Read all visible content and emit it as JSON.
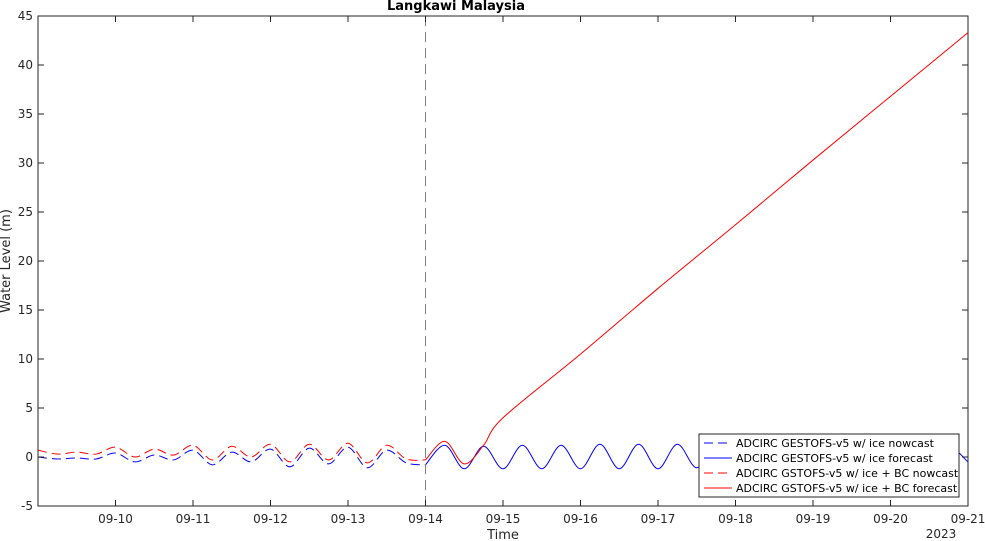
{
  "chart_data": {
    "type": "line",
    "title": "Langkawi Malaysia",
    "xlabel": "Time",
    "ylabel": "Water Level (m)",
    "year_label": "2023",
    "x_range": [
      "2023-09-09",
      "2023-09-21"
    ],
    "ylim": [
      -5,
      45
    ],
    "yticks": [
      -5,
      0,
      5,
      10,
      15,
      20,
      25,
      30,
      35,
      40,
      45
    ],
    "xticks": [
      {
        "date": "2023-09-10",
        "label": "09-10"
      },
      {
        "date": "2023-09-11",
        "label": "09-11"
      },
      {
        "date": "2023-09-12",
        "label": "09-12"
      },
      {
        "date": "2023-09-13",
        "label": "09-13"
      },
      {
        "date": "2023-09-14",
        "label": "09-14"
      },
      {
        "date": "2023-09-15",
        "label": "09-15"
      },
      {
        "date": "2023-09-16",
        "label": "09-16"
      },
      {
        "date": "2023-09-17",
        "label": "09-17"
      },
      {
        "date": "2023-09-18",
        "label": "09-18"
      },
      {
        "date": "2023-09-19",
        "label": "09-19"
      },
      {
        "date": "2023-09-20",
        "label": "09-20"
      },
      {
        "date": "2023-09-21",
        "label": "09-21"
      }
    ],
    "nowcast_forecast_split": "2023-09-14",
    "grid": false,
    "legend_position": "bottom-right",
    "series": [
      {
        "name": "ADCIRC GESTOFS-v5 w/ ice nowcast",
        "color": "#0000ff",
        "style": "dashed",
        "x": [
          "09-09 00:00",
          "09-09 06:00",
          "09-09 12:00",
          "09-09 18:00",
          "09-10 00:00",
          "09-10 06:00",
          "09-10 12:00",
          "09-10 18:00",
          "09-11 00:00",
          "09-11 06:00",
          "09-11 12:00",
          "09-11 18:00",
          "09-12 00:00",
          "09-12 06:00",
          "09-12 12:00",
          "09-12 18:00",
          "09-13 00:00",
          "09-13 06:00",
          "09-13 12:00",
          "09-13 18:00",
          "09-14 00:00"
        ],
        "y": [
          0.0,
          -0.2,
          -0.1,
          -0.2,
          0.4,
          -0.5,
          0.2,
          -0.3,
          0.7,
          -0.8,
          0.5,
          -0.5,
          0.8,
          -1.0,
          0.9,
          -0.7,
          1.0,
          -1.1,
          0.7,
          -0.6,
          -0.8
        ]
      },
      {
        "name": "ADCIRC GESTOFS-v5 w/ ice forecast",
        "color": "#0000ff",
        "style": "solid",
        "x": [
          "09-14 00:00",
          "09-14 06:00",
          "09-14 12:00",
          "09-14 18:00",
          "09-15 00:00",
          "09-15 06:00",
          "09-15 12:00",
          "09-15 18:00",
          "09-16 00:00",
          "09-16 06:00",
          "09-16 12:00",
          "09-16 18:00",
          "09-17 00:00",
          "09-17 06:00",
          "09-17 12:00",
          "09-17 18:00",
          "09-18 00:00",
          "09-18 06:00",
          "09-18 12:00",
          "09-18 18:00",
          "09-19 00:00",
          "09-19 06:00",
          "09-19 12:00",
          "09-19 18:00",
          "09-20 00:00",
          "09-20 06:00",
          "09-20 12:00",
          "09-20 18:00",
          "09-21 00:00"
        ],
        "y": [
          -0.8,
          1.2,
          -1.2,
          1.1,
          -1.2,
          1.2,
          -1.2,
          1.2,
          -1.2,
          1.3,
          -1.2,
          1.3,
          -1.2,
          1.3,
          -1.1,
          1.3,
          -1.1,
          1.3,
          -1.1,
          1.3,
          -1.1,
          1.3,
          -1.1,
          1.3,
          -1.1,
          1.3,
          -1.1,
          1.0,
          -0.5
        ]
      },
      {
        "name": "ADCIRC GSTOFS-v5 w/ ice + BC nowcast",
        "color": "#ff0000",
        "style": "dashed",
        "x": [
          "09-09 00:00",
          "09-09 06:00",
          "09-09 12:00",
          "09-09 18:00",
          "09-10 00:00",
          "09-10 06:00",
          "09-10 12:00",
          "09-10 18:00",
          "09-11 00:00",
          "09-11 06:00",
          "09-11 12:00",
          "09-11 18:00",
          "09-12 00:00",
          "09-12 06:00",
          "09-12 12:00",
          "09-12 18:00",
          "09-13 00:00",
          "09-13 06:00",
          "09-13 12:00",
          "09-13 18:00",
          "09-14 00:00"
        ],
        "y": [
          0.7,
          0.3,
          0.5,
          0.3,
          1.0,
          0.0,
          0.8,
          0.2,
          1.2,
          -0.3,
          1.1,
          0.0,
          1.3,
          -0.5,
          1.3,
          -0.3,
          1.4,
          -0.6,
          1.2,
          -0.2,
          -0.3
        ]
      },
      {
        "name": "ADCIRC GSTOFS-v5 w/ ice + BC forecast",
        "color": "#ff0000",
        "style": "solid",
        "x": [
          "09-14 00:00",
          "09-14 06:00",
          "09-14 12:00",
          "09-14 18:00",
          "09-15 00:00",
          "09-16 00:00",
          "09-17 00:00",
          "09-18 00:00",
          "09-19 00:00",
          "09-20 00:00",
          "09-21 00:00"
        ],
        "y": [
          -0.3,
          1.6,
          -0.7,
          1.2,
          4.0,
          10.5,
          17.2,
          23.7,
          30.3,
          36.8,
          43.3
        ]
      }
    ]
  }
}
